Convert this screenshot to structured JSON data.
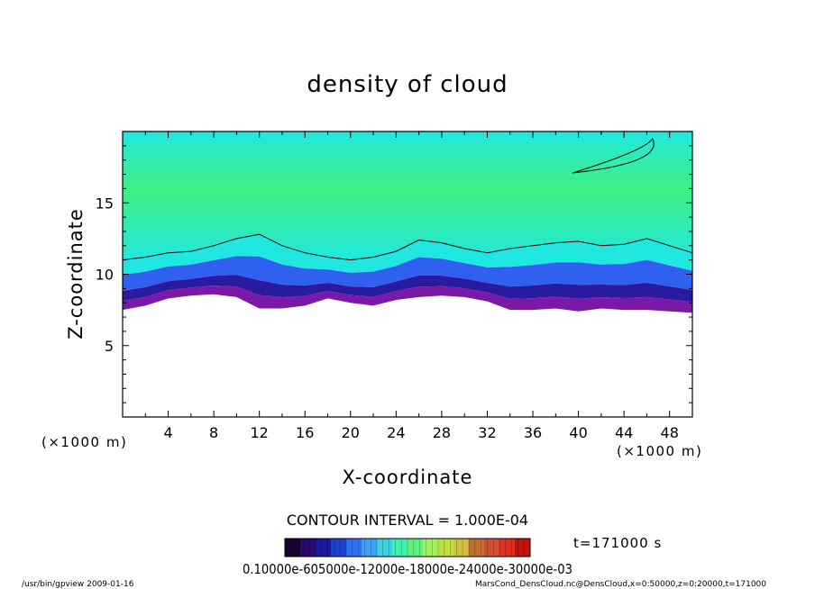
{
  "chart_data": {
    "type": "heatmap",
    "title": "density of cloud",
    "xlabel": "X-coordinate",
    "ylabel": "Z-coordinate",
    "x_unit_left": "(×1000 m)",
    "x_unit_right": "(×1000 m)",
    "xlim": [
      0,
      50
    ],
    "ylim": [
      0,
      20
    ],
    "x_ticks": [
      4,
      8,
      12,
      16,
      20,
      24,
      28,
      32,
      36,
      40,
      44,
      48
    ],
    "y_ticks": [
      5,
      10,
      15
    ],
    "contour_interval_text": "CONTOUR INTERVAL = 1.000E-04",
    "time_text": "t=171000 s",
    "colorbar_labels_text": "0.10000e-605000e-12000e-18000e-24000e-30000e-03",
    "colorbar_colors": [
      "#1a0030",
      "#2a0a6a",
      "#1a1aa0",
      "#2040d0",
      "#3070f0",
      "#40a0f0",
      "#40d0e0",
      "#40f0b0",
      "#60f080",
      "#a0f060",
      "#c0e040",
      "#d0c040",
      "#c07030",
      "#d05030",
      "#e03020",
      "#c01010"
    ],
    "field": {
      "green_color": "#40f080",
      "cyan_color": "#20e8e0",
      "blue_color": "#3060f0",
      "indigo_color": "#2a1aa0",
      "purple_color": "#7a18a8"
    },
    "cloud_top_z": [
      11.0,
      11.2,
      11.5,
      11.6,
      12.0,
      12.5,
      12.8,
      12.0,
      11.5,
      11.2,
      11.0,
      11.2,
      11.6,
      12.4,
      12.2,
      11.8,
      11.5,
      11.8,
      12.0,
      12.2,
      12.3,
      12.0,
      12.1,
      12.5,
      12.0,
      11.5
    ],
    "cloud_base_z": [
      7.5,
      7.8,
      8.3,
      8.5,
      8.6,
      8.4,
      7.6,
      7.6,
      7.8,
      8.3,
      8.0,
      7.8,
      8.2,
      8.4,
      8.5,
      8.4,
      8.1,
      7.5,
      7.5,
      7.6,
      7.4,
      7.6,
      7.5,
      7.5,
      7.4,
      7.3
    ]
  },
  "footer": {
    "left": "/usr/bin/gpview  2009-01-16",
    "right": "MarsCond_DensCloud.nc@DensCloud,x=0:50000,z=0:20000,t=171000"
  }
}
